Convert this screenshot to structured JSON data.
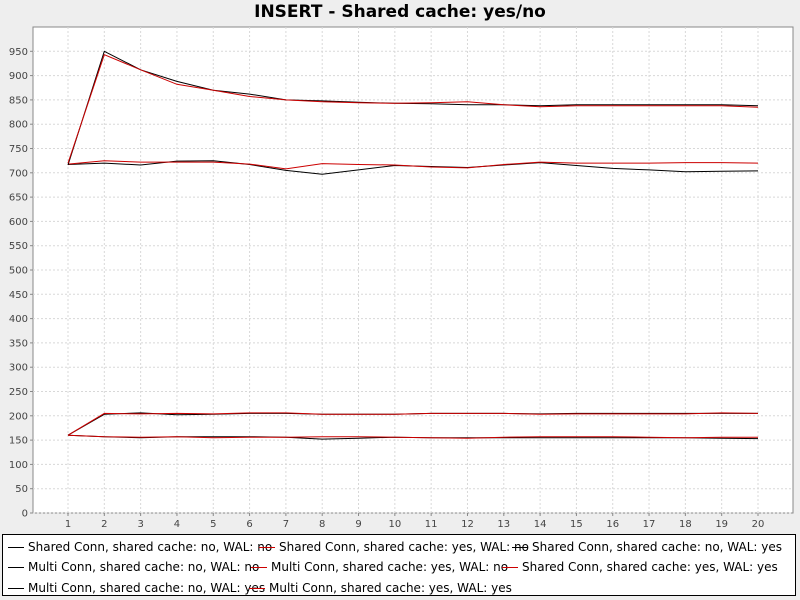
{
  "chart_data": {
    "type": "line",
    "title": "INSERT - Shared cache: yes/no",
    "xlabel": "",
    "ylabel": "",
    "categories": [
      "1",
      "2",
      "3",
      "4",
      "5",
      "6",
      "7",
      "8",
      "9",
      "10",
      "11",
      "12",
      "13",
      "14",
      "15",
      "16",
      "17",
      "18",
      "19",
      "20"
    ],
    "ylim": [
      0,
      1000
    ],
    "yticks": [
      0,
      50,
      100,
      150,
      200,
      250,
      300,
      350,
      400,
      450,
      500,
      550,
      600,
      650,
      700,
      750,
      800,
      850,
      900,
      950
    ],
    "grid": true,
    "legend_position": "bottom",
    "series": [
      {
        "name": "Shared Conn, shared cache: no, WAL: no",
        "color": "#000000",
        "values": [
          160,
          203,
          206,
          202,
          203,
          205,
          205,
          203,
          203,
          203,
          205,
          205,
          205,
          204,
          205,
          205,
          205,
          205,
          205,
          205
        ]
      },
      {
        "name": "Shared Conn, shared cache: yes, WAL: no",
        "color": "#cc0000",
        "values": [
          160,
          205,
          204,
          205,
          204,
          206,
          206,
          203,
          203,
          203,
          205,
          205,
          205,
          203,
          204,
          204,
          204,
          204,
          206,
          205
        ]
      },
      {
        "name": "Shared Conn, shared cache: no, WAL: yes",
        "color": "#000000",
        "values": [
          717,
          720,
          716,
          724,
          725,
          717,
          705,
          697,
          706,
          715,
          713,
          711,
          716,
          721,
          715,
          709,
          706,
          702,
          703,
          704
        ]
      },
      {
        "name": "Multi Conn, shared cache: no, WAL: no",
        "color": "#000000",
        "values": [
          160,
          157,
          155,
          157,
          157,
          157,
          156,
          152,
          154,
          156,
          155,
          155,
          155,
          155,
          155,
          155,
          155,
          155,
          154,
          153
        ]
      },
      {
        "name": "Multi Conn, shared cache: yes, WAL: no",
        "color": "#cc0000",
        "values": [
          160,
          157,
          156,
          157,
          155,
          156,
          156,
          157,
          157,
          156,
          155,
          154,
          156,
          157,
          157,
          157,
          156,
          155,
          156,
          156
        ]
      },
      {
        "name": "Shared Conn, shared cache: yes, WAL: yes",
        "color": "#cc0000",
        "values": [
          718,
          725,
          722,
          722,
          722,
          718,
          708,
          719,
          717,
          716,
          712,
          710,
          717,
          722,
          720,
          720,
          720,
          721,
          721,
          720
        ]
      },
      {
        "name": "Multi Conn, shared cache: no, WAL: yes",
        "color": "#000000",
        "values": [
          716,
          950,
          912,
          888,
          870,
          862,
          850,
          848,
          845,
          843,
          842,
          840,
          840,
          838,
          840,
          840,
          840,
          840,
          840,
          838
        ]
      },
      {
        "name": "Multi Conn, shared cache: yes, WAL: yes",
        "color": "#cc0000",
        "values": [
          720,
          943,
          912,
          882,
          870,
          857,
          850,
          846,
          844,
          843,
          844,
          846,
          840,
          836,
          838,
          838,
          838,
          838,
          838,
          835
        ]
      }
    ],
    "legend_order": [
      0,
      1,
      2,
      3,
      4,
      5,
      6,
      7
    ]
  }
}
